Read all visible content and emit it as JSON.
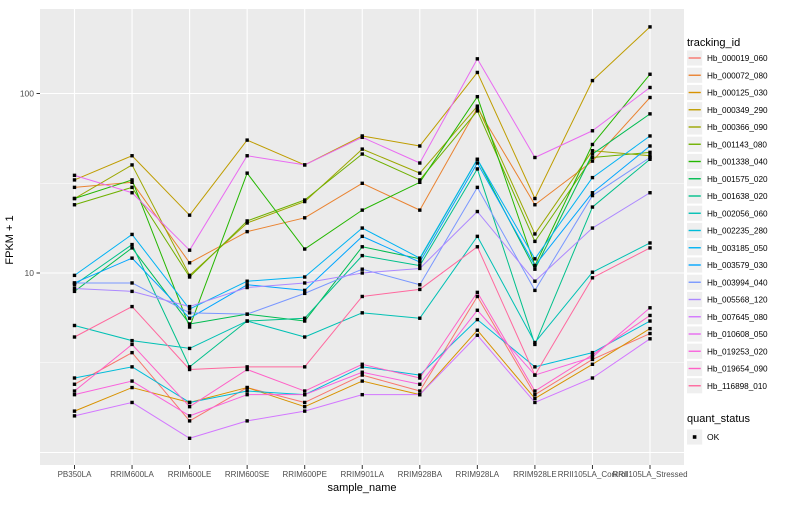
{
  "chart_data": {
    "type": "line",
    "title": "",
    "xlabel": "sample_name",
    "ylabel": "FPKM + 1",
    "y_scale": "log10",
    "y_ticks": [
      10,
      100
    ],
    "y_minor": [
      3.162,
      31.62
    ],
    "y_majors_unlabeled": [
      1
    ],
    "ylim": [
      0.9,
      290
    ],
    "panel_bg": "#EBEBEB",
    "grid_color": "#FFFFFF",
    "axis_text_color": "#4D4D4D",
    "axis_title_color": "#000000",
    "point_color": "#000000",
    "point_shape": "square",
    "legend": {
      "color_title": "tracking_id",
      "shape_title": "quant_status",
      "shape_items": [
        {
          "label": "OK",
          "shape": "square",
          "color": "#000000"
        }
      ],
      "key_bg": "#EFEFEF"
    },
    "categories": [
      "PB350LA",
      "RRIM600LA",
      "RRIM600LE",
      "RRIM600SE",
      "RRIM600PE",
      "RRIM901LA",
      "RRIM928BA",
      "RRIM928LA",
      "RRIM928LE",
      "RRII105LA_Control",
      "RRII105LA_Stressed"
    ],
    "series": [
      {
        "name": "Hb_000019_060",
        "color": "#F8766D",
        "values": [
          2.4,
          3.6,
          1.5,
          2.3,
          1.9,
          2.7,
          2.2,
          7.4,
          2.1,
          3.3,
          4.6
        ]
      },
      {
        "name": "Hb_000072_080",
        "color": "#EA8331",
        "values": [
          30,
          32,
          11.4,
          17,
          20.3,
          31.6,
          22.4,
          83,
          24,
          42,
          95
        ]
      },
      {
        "name": "Hb_000125_030",
        "color": "#D89200",
        "values": [
          1.7,
          2.3,
          1.9,
          2.3,
          1.8,
          2.5,
          2.1,
          4.8,
          2.0,
          3.1,
          4.9
        ]
      },
      {
        "name": "Hb_000349_290",
        "color": "#BF9D00",
        "values": [
          33,
          45,
          21,
          55,
          40,
          58,
          51,
          131,
          26,
          118,
          235
        ]
      },
      {
        "name": "Hb_000366_090",
        "color": "#9CA700",
        "values": [
          26,
          40,
          9.7,
          19,
          25,
          49,
          36,
          85,
          16.5,
          48,
          45
        ]
      },
      {
        "name": "Hb_001143_080",
        "color": "#6FB000",
        "values": [
          24,
          30,
          9.5,
          19.5,
          25.5,
          46,
          33,
          80,
          15,
          44,
          47
        ]
      },
      {
        "name": "Hb_001338_040",
        "color": "#24B700",
        "values": [
          26,
          33,
          5.0,
          36,
          13.6,
          22.4,
          32,
          96,
          11,
          52,
          128
        ]
      },
      {
        "name": "Hb_001575_020",
        "color": "#00BC51",
        "values": [
          7.9,
          13.8,
          5.2,
          5.9,
          5.4,
          14,
          12,
          43,
          10.5,
          46,
          77
        ]
      },
      {
        "name": "Hb_001638_020",
        "color": "#00C08B",
        "values": [
          8.6,
          14.4,
          3.0,
          5.4,
          5.6,
          12.5,
          11,
          38,
          4.0,
          23.3,
          43
        ]
      },
      {
        "name": "Hb_002056_060",
        "color": "#00C0B4",
        "values": [
          5.1,
          4.2,
          3.8,
          5.4,
          4.4,
          6.0,
          5.6,
          16,
          4.1,
          10.1,
          14.7
        ]
      },
      {
        "name": "Hb_002235_280",
        "color": "#00BCD8",
        "values": [
          2.6,
          3.0,
          1.9,
          2.2,
          2.1,
          3.0,
          2.7,
          5.5,
          3.0,
          3.6,
          5.4
        ]
      },
      {
        "name": "Hb_003185_050",
        "color": "#00B3F3",
        "values": [
          9.7,
          16.4,
          6.3,
          9.0,
          9.5,
          17.8,
          12.1,
          43,
          12,
          34,
          58
        ]
      },
      {
        "name": "Hb_003579_030",
        "color": "#00A5FF",
        "values": [
          8.8,
          12.1,
          5.6,
          8.6,
          8.0,
          16,
          11.5,
          41,
          11,
          28,
          51
        ]
      },
      {
        "name": "Hb_003994_040",
        "color": "#7997FF",
        "values": [
          8.8,
          8.8,
          6.0,
          5.9,
          7.7,
          10.5,
          8.6,
          30,
          8.0,
          27,
          44
        ]
      },
      {
        "name": "Hb_005568_120",
        "color": "#AC88FF",
        "values": [
          8.2,
          7.9,
          6.5,
          8.3,
          8.8,
          10.0,
          10.6,
          22,
          9.0,
          17.8,
          28
        ]
      },
      {
        "name": "Hb_007645_080",
        "color": "#D277FF",
        "values": [
          1.6,
          1.9,
          1.2,
          1.5,
          1.7,
          2.1,
          2.1,
          4.5,
          1.9,
          2.6,
          4.3
        ]
      },
      {
        "name": "Hb_010608_050",
        "color": "#E96BF1",
        "values": [
          35,
          28,
          13.4,
          45,
          40,
          57,
          41,
          156,
          44,
          62,
          108
        ]
      },
      {
        "name": "Hb_019253_020",
        "color": "#F962DD",
        "values": [
          2.1,
          2.5,
          1.6,
          2.1,
          2.1,
          2.8,
          2.4,
          6.2,
          2.7,
          3.4,
          6.4
        ]
      },
      {
        "name": "Hb_019654_090",
        "color": "#FF61C7",
        "values": [
          2.2,
          4.0,
          1.8,
          2.9,
          2.2,
          3.1,
          2.6,
          7.8,
          2.2,
          3.5,
          5.8
        ]
      },
      {
        "name": "Hb_116898_010",
        "color": "#FF689E",
        "values": [
          4.4,
          6.5,
          2.9,
          3.0,
          3.0,
          7.4,
          8.1,
          14,
          2.7,
          9.4,
          13.8
        ]
      }
    ]
  }
}
